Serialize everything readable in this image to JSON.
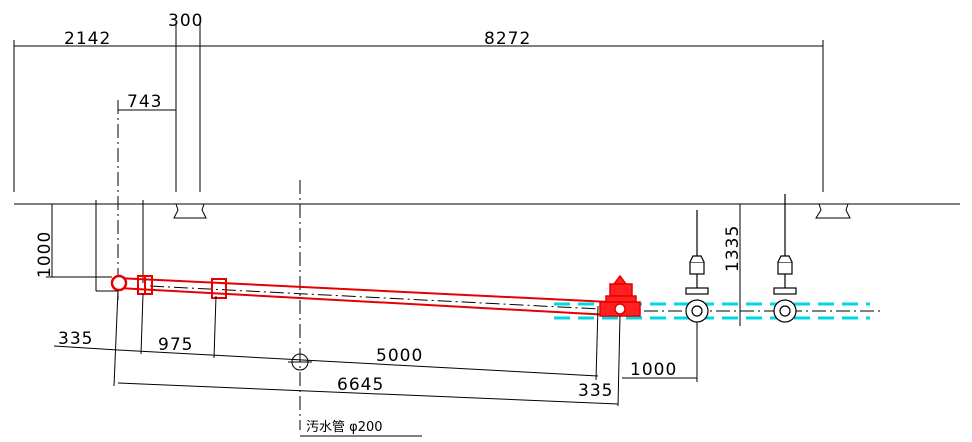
{
  "colors": {
    "line": "#000000",
    "pipe": "#e60000",
    "fitting_fill": "#ff2020",
    "water_line": "#00d8e0",
    "background": "#ffffff"
  },
  "dimensions": {
    "d_300": "300",
    "d_2142": "2142",
    "d_8272": "8272",
    "d_743": "743",
    "d_1000_left": "1000",
    "d_1335": "1335",
    "d_335_left": "335",
    "d_975": "975",
    "d_5000": "5000",
    "d_6645": "6645",
    "d_335_right": "335",
    "d_1000_bottom": "1000"
  },
  "annotation": {
    "sewer_pipe": "汚水管 φ200"
  },
  "icons": [
    "pipe-cap-icon",
    "hydrant-fitting-icon",
    "gate-valve-icon",
    "manhole-circle-icon"
  ]
}
